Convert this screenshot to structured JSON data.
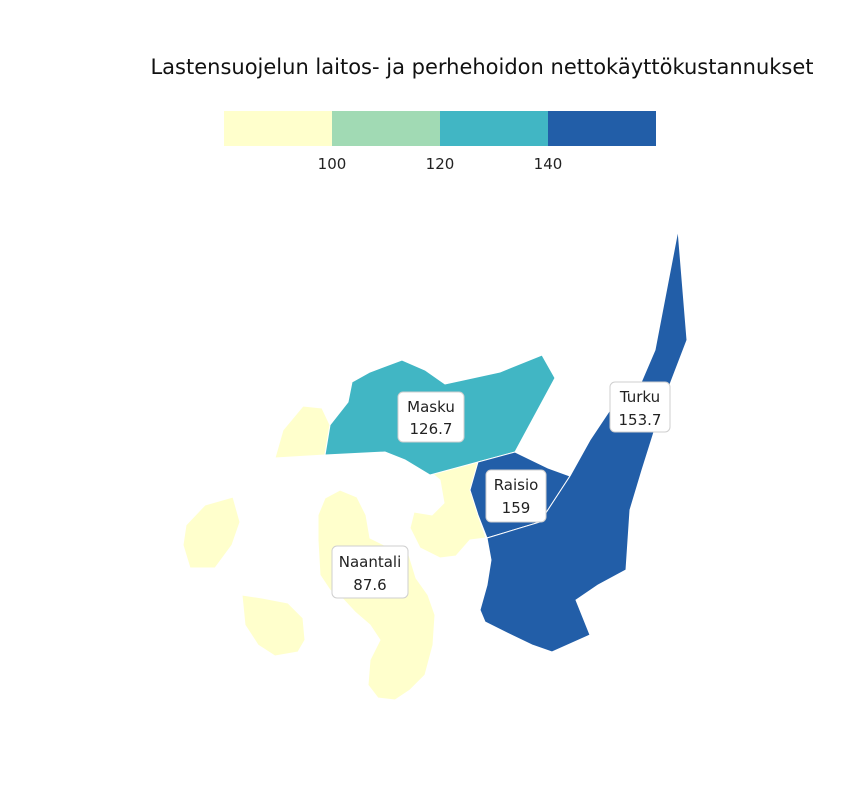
{
  "title": "Lastensuojelun laitos- ja perhehoidon nettokäyttökustannukset",
  "legend": {
    "colors": [
      "#ffffcc",
      "#a1dab4",
      "#41b6c4",
      "#225ea8"
    ],
    "ticks": [
      "100",
      "120",
      "140"
    ]
  },
  "regions": [
    {
      "id": "turku",
      "name": "Turku",
      "value": "153.7",
      "color": "#225ea8"
    },
    {
      "id": "raisio",
      "name": "Raisio",
      "value": "159",
      "color": "#225ea8"
    },
    {
      "id": "masku",
      "name": "Masku",
      "value": "126.7",
      "color": "#41b6c4"
    },
    {
      "id": "naantali",
      "name": "Naantali",
      "value": "87.6",
      "color": "#ffffcc"
    }
  ]
}
